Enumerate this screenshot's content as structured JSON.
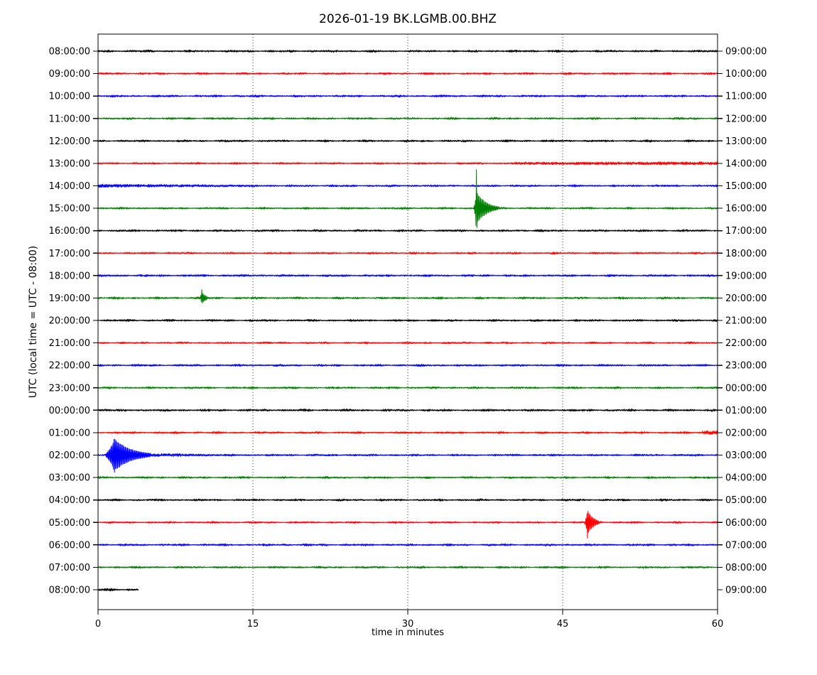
{
  "chart_data": {
    "type": "line",
    "subtype": "seismogram-dayplot",
    "title": "2026-01-19 BK.LGMB.00.BHZ",
    "xlabel": "time in minutes",
    "ylabel": "UTC (local time = UTC - 08:00)",
    "xlim": [
      0,
      60
    ],
    "x_ticks": [
      0,
      15,
      30,
      45,
      60
    ],
    "grid_x_minutes": [
      15,
      30,
      45
    ],
    "grid_style": "dotted-vertical",
    "minutes_per_row": 60,
    "color_cycle": [
      "#000000",
      "#ff0000",
      "#0000ff",
      "#008000"
    ],
    "frame_color": "#000000",
    "background": "#ffffff",
    "rows": [
      {
        "left_label": "08:00:00",
        "right_label": "09:00:00",
        "color": "#000000",
        "base_amp": 1.25,
        "end_min": 60,
        "events": []
      },
      {
        "left_label": "09:00:00",
        "right_label": "10:00:00",
        "color": "#ff0000",
        "base_amp": 1.15,
        "end_min": 60,
        "events": []
      },
      {
        "left_label": "10:00:00",
        "right_label": "11:00:00",
        "color": "#0000ff",
        "base_amp": 1.2,
        "end_min": 60,
        "events": []
      },
      {
        "left_label": "11:00:00",
        "right_label": "12:00:00",
        "color": "#008000",
        "base_amp": 1.2,
        "end_min": 60,
        "events": []
      },
      {
        "left_label": "12:00:00",
        "right_label": "13:00:00",
        "color": "#000000",
        "base_amp": 1.2,
        "end_min": 60,
        "events": []
      },
      {
        "left_label": "13:00:00",
        "right_label": "14:00:00",
        "color": "#ff0000",
        "base_amp": 1.1,
        "end_min": 60,
        "events": [
          {
            "kind": "tremor",
            "start": 40,
            "end": 60,
            "amp": 1.8,
            "amp_end": 2.4
          }
        ]
      },
      {
        "left_label": "14:00:00",
        "right_label": "15:00:00",
        "color": "#0000ff",
        "base_amp": 1.15,
        "end_min": 60,
        "events": [
          {
            "kind": "tremor",
            "start": 0,
            "end": 14,
            "amp": 2.4,
            "amp_end": 1.4
          }
        ]
      },
      {
        "left_label": "15:00:00",
        "right_label": "16:00:00",
        "color": "#008000",
        "base_amp": 1.15,
        "end_min": 60,
        "events": [
          {
            "kind": "quake",
            "onset": 36.3,
            "peak": 36.65,
            "coda": 0.9,
            "amp": 24,
            "spike_amp": 56,
            "spike_width": 0.1
          }
        ]
      },
      {
        "left_label": "16:00:00",
        "right_label": "17:00:00",
        "color": "#000000",
        "base_amp": 1.25,
        "end_min": 60,
        "events": []
      },
      {
        "left_label": "17:00:00",
        "right_label": "18:00:00",
        "color": "#ff0000",
        "base_amp": 1.1,
        "end_min": 60,
        "events": []
      },
      {
        "left_label": "18:00:00",
        "right_label": "19:00:00",
        "color": "#0000ff",
        "base_amp": 1.2,
        "end_min": 60,
        "events": []
      },
      {
        "left_label": "19:00:00",
        "right_label": "20:00:00",
        "color": "#008000",
        "base_amp": 1.2,
        "end_min": 60,
        "events": [
          {
            "kind": "quake",
            "onset": 9.75,
            "peak": 10.05,
            "coda": 0.4,
            "amp": 8.5,
            "spike_amp": 12,
            "spike_width": 0.08
          }
        ]
      },
      {
        "left_label": "20:00:00",
        "right_label": "21:00:00",
        "color": "#000000",
        "base_amp": 1.2,
        "end_min": 60,
        "events": []
      },
      {
        "left_label": "21:00:00",
        "right_label": "22:00:00",
        "color": "#ff0000",
        "base_amp": 1.1,
        "end_min": 60,
        "events": []
      },
      {
        "left_label": "22:00:00",
        "right_label": "23:00:00",
        "color": "#0000ff",
        "base_amp": 1.2,
        "end_min": 60,
        "events": []
      },
      {
        "left_label": "23:00:00",
        "right_label": "00:00:00",
        "color": "#008000",
        "base_amp": 1.15,
        "end_min": 60,
        "events": []
      },
      {
        "left_label": "00:00:00",
        "right_label": "01:00:00",
        "color": "#000000",
        "base_amp": 1.3,
        "end_min": 60,
        "events": []
      },
      {
        "left_label": "01:00:00",
        "right_label": "02:00:00",
        "color": "#ff0000",
        "base_amp": 1.15,
        "end_min": 60,
        "events": [
          {
            "kind": "tremor",
            "start": 58.5,
            "end": 60,
            "amp": 2.4,
            "amp_end": 3.4
          }
        ]
      },
      {
        "left_label": "02:00:00",
        "right_label": "03:00:00",
        "color": "#0000ff",
        "base_amp": 1.2,
        "end_min": 60,
        "events": [
          {
            "kind": "quake",
            "onset": 0.35,
            "peak": 1.6,
            "coda": 1.6,
            "amp": 23,
            "spike_amp": 26,
            "spike_width": 0.45
          },
          {
            "kind": "tremor",
            "start": 3.2,
            "end": 12,
            "amp": 3.0,
            "amp_end": 1.2
          }
        ]
      },
      {
        "left_label": "03:00:00",
        "right_label": "04:00:00",
        "color": "#008000",
        "base_amp": 1.15,
        "end_min": 60,
        "events": []
      },
      {
        "left_label": "04:00:00",
        "right_label": "05:00:00",
        "color": "#000000",
        "base_amp": 1.2,
        "end_min": 60,
        "events": []
      },
      {
        "left_label": "05:00:00",
        "right_label": "06:00:00",
        "color": "#ff0000",
        "base_amp": 1.1,
        "end_min": 60,
        "events": [
          {
            "kind": "quake",
            "onset": 47.05,
            "peak": 47.4,
            "coda": 0.55,
            "amp": 18,
            "spike_amp": 23,
            "spike_width": 0.12
          }
        ]
      },
      {
        "left_label": "06:00:00",
        "right_label": "07:00:00",
        "color": "#0000ff",
        "base_amp": 1.2,
        "end_min": 60,
        "events": []
      },
      {
        "left_label": "07:00:00",
        "right_label": "08:00:00",
        "color": "#008000",
        "base_amp": 1.2,
        "end_min": 60,
        "events": []
      },
      {
        "left_label": "08:00:00",
        "right_label": "09:00:00",
        "color": "#000000",
        "base_amp": 1.4,
        "end_min": 3.9,
        "events": []
      }
    ]
  }
}
